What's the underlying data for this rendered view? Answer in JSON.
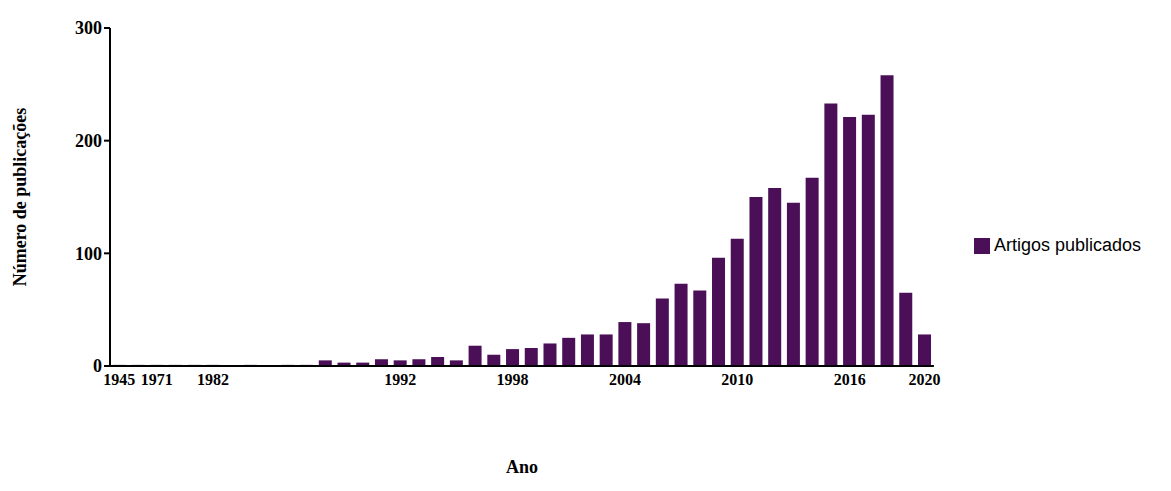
{
  "chart_data": {
    "type": "bar",
    "x_label": "Ano",
    "y_label": "Número de publicações",
    "categories": [
      "1945",
      null,
      "1971",
      null,
      null,
      "1982",
      null,
      null,
      null,
      null,
      null,
      null,
      null,
      null,
      null,
      "1992",
      null,
      null,
      null,
      null,
      null,
      "1998",
      null,
      null,
      null,
      null,
      null,
      "2004",
      null,
      null,
      null,
      null,
      null,
      "2010",
      null,
      null,
      null,
      null,
      null,
      "2016",
      null,
      null,
      null,
      "2020"
    ],
    "series": [
      {
        "name": "Artigos publicados",
        "color": "#4b0f57",
        "values": [
          1,
          1,
          1,
          1,
          1,
          1,
          0,
          1,
          0,
          1,
          1,
          5,
          3,
          3,
          6,
          5,
          6,
          8,
          5,
          18,
          10,
          15,
          16,
          20,
          25,
          28,
          28,
          39,
          38,
          60,
          73,
          67,
          96,
          113,
          150,
          158,
          145,
          167,
          233,
          221,
          223,
          258,
          65,
          28
        ]
      }
    ],
    "ylim": [
      0,
      300
    ],
    "yticks": [
      0,
      100,
      200,
      300
    ],
    "legend": "right",
    "grid": false
  }
}
